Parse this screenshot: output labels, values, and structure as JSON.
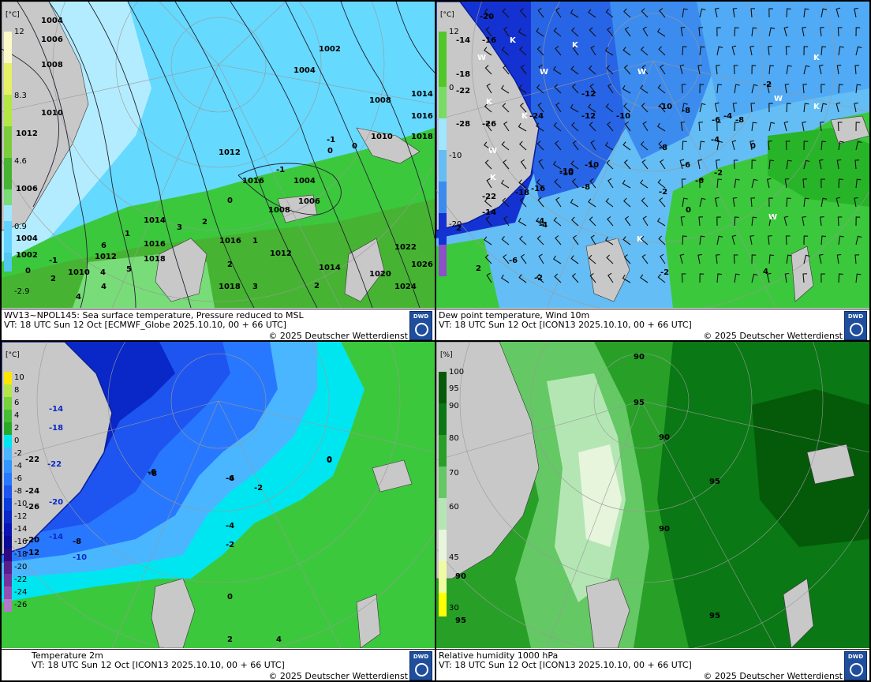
{
  "panels": [
    {
      "title": "WV13~NPOL145: Sea surface temperature,  Pressure reduced to MSL",
      "valid": "VT: 18 UTC Sun  12 Oct [ECMWF_Globe 2025.10.10, 00 + 66 UTC]",
      "copyright": "© 2025 Deutscher Wetterdienst",
      "logo": "DWD",
      "unit": "[°C]",
      "legend_labels": [
        "12",
        "8.3",
        "4.6",
        "0.9",
        "-2.9"
      ],
      "legend_colors": [
        "#fafac8",
        "#e6f064",
        "#b4e646",
        "#7ccd3c",
        "#46b432",
        "#28a028",
        "#78dc78",
        "#a0e6ff",
        "#64d2ff",
        "#50c8f0"
      ],
      "isobars": [
        "1004",
        "1006",
        "1008",
        "1010",
        "1012",
        "1006",
        "1002",
        "1004",
        "1008",
        "1014",
        "1016",
        "1018",
        "1012",
        "1010",
        "1016",
        "1004",
        "1006",
        "1008",
        "1014",
        "1012",
        "1016",
        "1018",
        "1010",
        "1012",
        "1014",
        "1016",
        "1020",
        "1022",
        "1024",
        "1026",
        "1018",
        "1004",
        "1002"
      ],
      "sst_labels": [
        "0",
        "-1",
        "2",
        "1",
        "3",
        "2",
        "0",
        "1",
        "2",
        "3",
        "4",
        "5",
        "6",
        "4",
        "-1",
        "-1",
        "0",
        "0",
        "2",
        "4"
      ]
    },
    {
      "title": "Dew point temperature, Wind 10m",
      "valid": "VT: 18 UTC Sun  12 Oct [ICON13 2025.10.10,  00 + 66 UTC]",
      "copyright": "© 2025 Deutscher Wetterdienst",
      "logo": "DWD",
      "unit": "[°C]",
      "legend_labels": [
        "12",
        "0",
        "-10",
        "-20"
      ],
      "values": [
        "-20",
        "-14",
        "-16",
        "-18",
        "-22",
        "-28",
        "-26",
        "-24",
        "-22",
        "-14",
        "-10",
        "-12",
        "-10",
        "-10",
        "-8",
        "-8",
        "-6",
        "-4",
        "-2",
        "-6",
        "-4",
        "0",
        "-2",
        "0",
        "2",
        "4",
        "-12",
        "-10",
        "-8",
        "-6",
        "-2",
        "2",
        "-4",
        "-6",
        "-4",
        "-2",
        "-2",
        "-8",
        "-10",
        "-18",
        "-16"
      ],
      "markers": [
        "K",
        "W",
        "K",
        "W",
        "K",
        "K",
        "W",
        "K",
        "W",
        "K",
        "W",
        "K",
        "W",
        "K"
      ]
    },
    {
      "title": "Temperature 2m",
      "valid": "VT: 18 UTC Sun  12 Oct [ICON13 2025.10.10, 00 + 66 UTC]",
      "copyright": "© 2025 Deutscher Wetterdienst",
      "logo": "DWD",
      "unit": "[°C]",
      "legend_labels": [
        "10",
        "8",
        "6",
        "4",
        "2",
        "0",
        "-2",
        "-4",
        "-6",
        "-8",
        "-10",
        "-12",
        "-14",
        "-16",
        "-18",
        "-20",
        "-22",
        "-24",
        "-26"
      ],
      "values": [
        "-14",
        "-18",
        "-22",
        "-20",
        "-14",
        "-10",
        "-8",
        "-6",
        "-4",
        "-2",
        "0",
        "-8",
        "-6",
        "-4",
        "-2",
        "0",
        "2",
        "4",
        "-22",
        "-24",
        "-26",
        "-20",
        "-12",
        "0"
      ]
    },
    {
      "title": "Relative humidity 1000 hPa",
      "valid": "VT: 18 UTC Sun  12 Oct [ICON13 2025.10.10, 00 + 66 UTC]",
      "copyright": "© 2025 Deutscher Wetterdienst",
      "logo": "DWD",
      "unit": "[%]",
      "legend_labels": [
        "100",
        "95",
        "90",
        "80",
        "70",
        "60",
        "45",
        "30"
      ],
      "values": [
        "90",
        "95",
        "90",
        "95",
        "90",
        "95",
        "90",
        "95"
      ]
    }
  ],
  "colors": {
    "sea_light": "#66d9ff",
    "ice_blue": "#b4ecff",
    "land_grey": "#c8c8c8",
    "green": "#3cc83c",
    "dark_blue": "#1432d2",
    "dark_green": "#0a7814"
  }
}
